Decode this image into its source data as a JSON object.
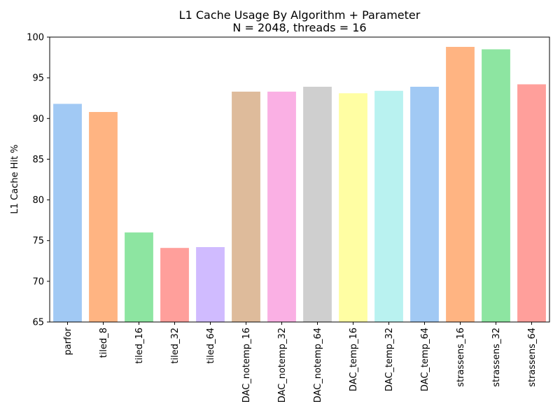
{
  "chart_data": {
    "type": "bar",
    "title": "L1 Cache Usage By Algorithm + Parameter",
    "subtitle": "N = 2048, threads = 16",
    "xlabel": "",
    "ylabel": "L1 Cache Hit %",
    "ylim": [
      65,
      100
    ],
    "yticks": [
      "65",
      "70",
      "75",
      "80",
      "85",
      "90",
      "95",
      "100"
    ],
    "grid": false,
    "categories": [
      "parfor",
      "tiled_8",
      "tiled_16",
      "tiled_32",
      "tiled_64",
      "DAC_notemp_16",
      "DAC_notemp_32",
      "DAC_notemp_64",
      "DAC_temp_16",
      "DAC_temp_32",
      "DAC_temp_64",
      "strassens_16",
      "strassens_32",
      "strassens_64"
    ],
    "values": [
      91.8,
      90.8,
      76.0,
      74.1,
      74.2,
      93.3,
      93.3,
      93.9,
      93.1,
      93.4,
      93.9,
      98.8,
      98.5,
      94.2
    ],
    "colors": [
      "#a1c9f4",
      "#ffb482",
      "#8de5a1",
      "#ff9f9b",
      "#d0bbff",
      "#debb9b",
      "#fab0e4",
      "#cfcfcf",
      "#fffea3",
      "#b9f2f0",
      "#a1c9f4",
      "#ffb482",
      "#8de5a1",
      "#ff9f9b"
    ]
  }
}
